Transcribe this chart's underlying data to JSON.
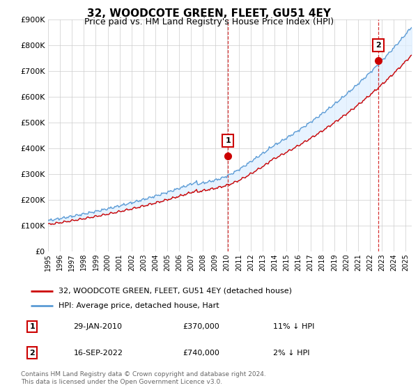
{
  "title": "32, WOODCOTE GREEN, FLEET, GU51 4EY",
  "subtitle": "Price paid vs. HM Land Registry's House Price Index (HPI)",
  "ylim": [
    0,
    900000
  ],
  "yticks": [
    0,
    100000,
    200000,
    300000,
    400000,
    500000,
    600000,
    700000,
    800000,
    900000
  ],
  "xlim_start": 1995.0,
  "xlim_end": 2025.5,
  "hpi_color": "#5b9bd5",
  "hpi_fill_color": "#ddeeff",
  "price_color": "#cc0000",
  "marker1_x": 2010.08,
  "marker1_y": 370000,
  "marker1_label": "1",
  "marker2_x": 2022.71,
  "marker2_y": 740000,
  "marker2_label": "2",
  "vline1_x": 2010.08,
  "vline2_x": 2022.71,
  "legend_line1": "32, WOODCOTE GREEN, FLEET, GU51 4EY (detached house)",
  "legend_line2": "HPI: Average price, detached house, Hart",
  "table_row1_num": "1",
  "table_row1_date": "29-JAN-2010",
  "table_row1_price": "£370,000",
  "table_row1_note": "11% ↓ HPI",
  "table_row2_num": "2",
  "table_row2_date": "16-SEP-2022",
  "table_row2_price": "£740,000",
  "table_row2_note": "2% ↓ HPI",
  "footer": "Contains HM Land Registry data © Crown copyright and database right 2024.\nThis data is licensed under the Open Government Licence v3.0.",
  "background_color": "#ffffff",
  "grid_color": "#cccccc"
}
